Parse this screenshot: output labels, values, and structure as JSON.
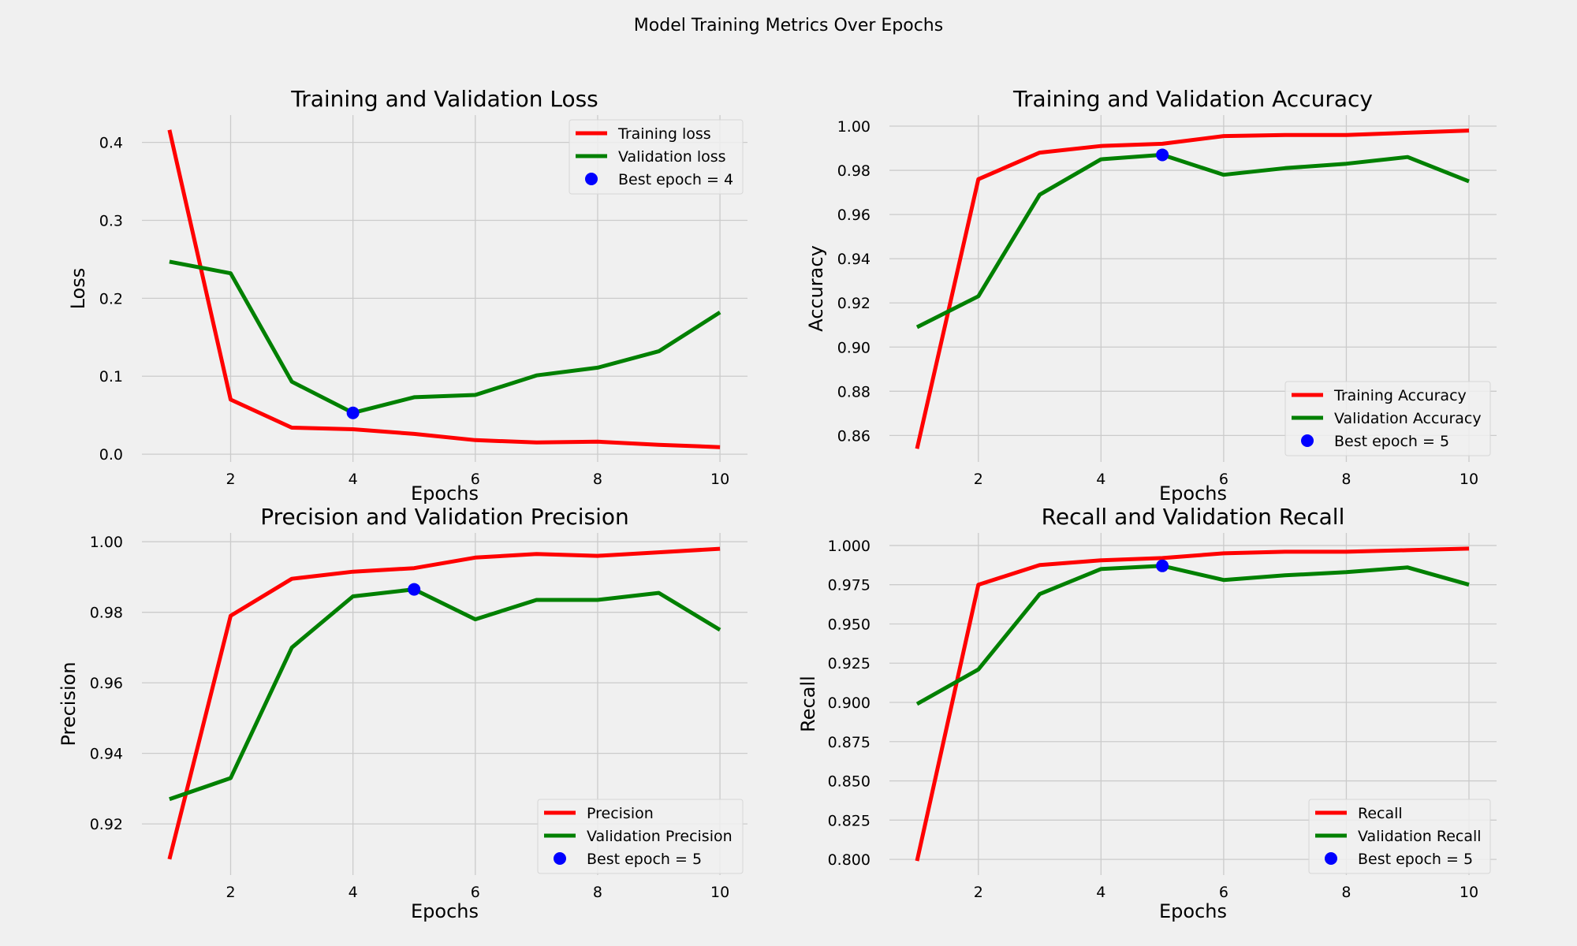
{
  "figure": {
    "suptitle": "Model Training Metrics Over Epochs",
    "background": "#f0f0f0",
    "grid_color": "#cbcbcb",
    "colors": {
      "training": "#ff0000",
      "validation": "#008000",
      "best": "#0000ff"
    }
  },
  "chart_data": [
    {
      "type": "line",
      "title": "Training and Validation Loss",
      "xlabel": "Epochs",
      "ylabel": "Loss",
      "x": [
        1,
        2,
        3,
        4,
        5,
        6,
        7,
        8,
        9,
        10
      ],
      "xticks": [
        2,
        4,
        6,
        8,
        10
      ],
      "xlim": [
        0.55,
        10.45
      ],
      "ylim": [
        -0.01,
        0.435
      ],
      "yticks": [
        0.0,
        0.1,
        0.2,
        0.3,
        0.4
      ],
      "ytick_decimals": 1,
      "grid": true,
      "legend_position": "upper-right",
      "series": [
        {
          "name": "Training loss",
          "color": "#ff0000",
          "values": [
            0.416,
            0.07,
            0.034,
            0.032,
            0.026,
            0.018,
            0.015,
            0.016,
            0.012,
            0.009
          ]
        },
        {
          "name": "Validation loss",
          "color": "#008000",
          "values": [
            0.247,
            0.232,
            0.093,
            0.053,
            0.073,
            0.076,
            0.101,
            0.111,
            0.132,
            0.182
          ]
        }
      ],
      "best_point": {
        "label": "Best epoch = 4",
        "x": 4,
        "y": 0.053,
        "color": "#0000ff"
      }
    },
    {
      "type": "line",
      "title": "Training and Validation Accuracy",
      "xlabel": "Epochs",
      "ylabel": "Accuracy",
      "x": [
        1,
        2,
        3,
        4,
        5,
        6,
        7,
        8,
        9,
        10
      ],
      "xticks": [
        2,
        4,
        6,
        8,
        10
      ],
      "xlim": [
        0.55,
        10.45
      ],
      "ylim": [
        0.848,
        1.005
      ],
      "yticks": [
        0.86,
        0.88,
        0.9,
        0.92,
        0.94,
        0.96,
        0.98,
        1.0
      ],
      "ytick_decimals": 2,
      "grid": true,
      "legend_position": "lower-right",
      "series": [
        {
          "name": "Training Accuracy",
          "color": "#ff0000",
          "values": [
            0.854,
            0.976,
            0.988,
            0.991,
            0.992,
            0.9955,
            0.996,
            0.996,
            0.997,
            0.998
          ]
        },
        {
          "name": "Validation Accuracy",
          "color": "#008000",
          "values": [
            0.909,
            0.923,
            0.969,
            0.985,
            0.987,
            0.978,
            0.981,
            0.983,
            0.986,
            0.975
          ]
        }
      ],
      "best_point": {
        "label": "Best epoch = 5",
        "x": 5,
        "y": 0.987,
        "color": "#0000ff"
      }
    },
    {
      "type": "line",
      "title": "Precision and Validation Precision",
      "xlabel": "Epochs",
      "ylabel": "Precision",
      "x": [
        1,
        2,
        3,
        4,
        5,
        6,
        7,
        8,
        9,
        10
      ],
      "xticks": [
        2,
        4,
        6,
        8,
        10
      ],
      "xlim": [
        0.55,
        10.45
      ],
      "ylim": [
        0.9055,
        1.0025
      ],
      "yticks": [
        0.92,
        0.94,
        0.96,
        0.98,
        1.0
      ],
      "ytick_decimals": 2,
      "grid": true,
      "legend_position": "lower-right",
      "series": [
        {
          "name": "Precision",
          "color": "#ff0000",
          "values": [
            0.91,
            0.979,
            0.9895,
            0.9915,
            0.9925,
            0.9955,
            0.9965,
            0.996,
            0.997,
            0.998
          ]
        },
        {
          "name": "Validation Precision",
          "color": "#008000",
          "values": [
            0.927,
            0.933,
            0.97,
            0.9845,
            0.9865,
            0.978,
            0.9835,
            0.9835,
            0.9855,
            0.975
          ]
        }
      ],
      "best_point": {
        "label": "Best epoch = 5",
        "x": 5,
        "y": 0.9865,
        "color": "#0000ff"
      }
    },
    {
      "type": "line",
      "title": "Recall and Validation Recall",
      "xlabel": "Epochs",
      "ylabel": "Recall",
      "x": [
        1,
        2,
        3,
        4,
        5,
        6,
        7,
        8,
        9,
        10
      ],
      "xticks": [
        2,
        4,
        6,
        8,
        10
      ],
      "xlim": [
        0.55,
        10.45
      ],
      "ylim": [
        0.79,
        1.008
      ],
      "yticks": [
        0.8,
        0.825,
        0.85,
        0.875,
        0.9,
        0.925,
        0.95,
        0.975,
        1.0
      ],
      "ytick_decimals": 3,
      "grid": true,
      "legend_position": "lower-right",
      "series": [
        {
          "name": "Recall",
          "color": "#ff0000",
          "values": [
            0.799,
            0.975,
            0.9875,
            0.9905,
            0.992,
            0.995,
            0.996,
            0.996,
            0.997,
            0.998
          ]
        },
        {
          "name": "Validation Recall",
          "color": "#008000",
          "values": [
            0.899,
            0.921,
            0.969,
            0.985,
            0.987,
            0.978,
            0.981,
            0.983,
            0.986,
            0.975
          ]
        }
      ],
      "best_point": {
        "label": "Best epoch = 5",
        "x": 5,
        "y": 0.987,
        "color": "#0000ff"
      }
    }
  ]
}
